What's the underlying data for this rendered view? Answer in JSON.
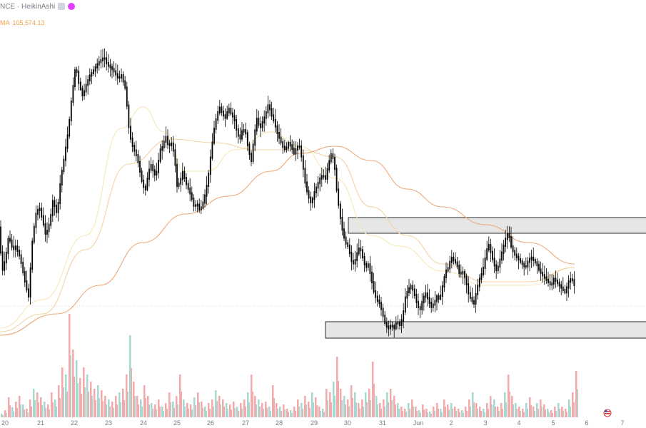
{
  "legend": {
    "symbol_text": "NCE · HeikinAshi",
    "ma_label": "MA",
    "ma_value": "105,574.13"
  },
  "colors": {
    "candle": "#000000",
    "ma_fast": "#f7e6b5",
    "ma_mid": "#f4d2a3",
    "ma_slow": "#eda979",
    "zone_fill": "#e6e6e6",
    "zone_stroke": "#2a2a2a",
    "vol_up": "#a8d8d2",
    "vol_down": "#f4aaaa",
    "crosshair": "#b0b0b0",
    "flag": "#d33"
  },
  "chart_data": {
    "type": "candlestick",
    "chart_style": "HeikinAshi",
    "x_tick_labels": [
      "20",
      "21",
      "22",
      "23",
      "24",
      "25",
      "26",
      "27",
      "28",
      "29",
      "30",
      "31",
      "Jun",
      "2",
      "3",
      "4",
      "5",
      "6",
      "7"
    ],
    "price_path": [
      [
        0,
        340
      ],
      [
        3,
        380
      ],
      [
        8,
        360
      ],
      [
        12,
        330
      ],
      [
        18,
        350
      ],
      [
        22,
        345
      ],
      [
        28,
        360
      ],
      [
        32,
        380
      ],
      [
        36,
        400
      ],
      [
        40,
        415
      ],
      [
        45,
        340
      ],
      [
        50,
        300
      ],
      [
        55,
        290
      ],
      [
        60,
        310
      ],
      [
        64,
        330
      ],
      [
        70,
        310
      ],
      [
        74,
        280
      ],
      [
        80,
        300
      ],
      [
        85,
        250
      ],
      [
        90,
        220
      ],
      [
        96,
        180
      ],
      [
        100,
        140
      ],
      [
        106,
        90
      ],
      [
        110,
        115
      ],
      [
        116,
        135
      ],
      [
        120,
        120
      ],
      [
        126,
        105
      ],
      [
        130,
        100
      ],
      [
        136,
        90
      ],
      [
        140,
        85
      ],
      [
        146,
        80
      ],
      [
        150,
        90
      ],
      [
        156,
        95
      ],
      [
        160,
        100
      ],
      [
        166,
        110
      ],
      [
        170,
        105
      ],
      [
        176,
        125
      ],
      [
        180,
        175
      ],
      [
        184,
        200
      ],
      [
        188,
        210
      ],
      [
        192,
        220
      ],
      [
        196,
        240
      ],
      [
        200,
        260
      ],
      [
        204,
        265
      ],
      [
        208,
        240
      ],
      [
        212,
        230
      ],
      [
        216,
        245
      ],
      [
        220,
        240
      ],
      [
        224,
        210
      ],
      [
        228,
        205
      ],
      [
        232,
        190
      ],
      [
        236,
        205
      ],
      [
        240,
        200
      ],
      [
        244,
        215
      ],
      [
        248,
        260
      ],
      [
        252,
        255
      ],
      [
        256,
        240
      ],
      [
        260,
        255
      ],
      [
        264,
        265
      ],
      [
        268,
        275
      ],
      [
        272,
        290
      ],
      [
        276,
        285
      ],
      [
        280,
        295
      ],
      [
        284,
        285
      ],
      [
        288,
        270
      ],
      [
        292,
        245
      ],
      [
        296,
        210
      ],
      [
        300,
        180
      ],
      [
        304,
        160
      ],
      [
        308,
        150
      ],
      [
        312,
        160
      ],
      [
        316,
        165
      ],
      [
        320,
        150
      ],
      [
        324,
        160
      ],
      [
        328,
        165
      ],
      [
        332,
        185
      ],
      [
        336,
        195
      ],
      [
        340,
        180
      ],
      [
        344,
        185
      ],
      [
        348,
        210
      ],
      [
        352,
        225
      ],
      [
        356,
        190
      ],
      [
        360,
        165
      ],
      [
        364,
        180
      ],
      [
        368,
        170
      ],
      [
        372,
        160
      ],
      [
        376,
        145
      ],
      [
        380,
        160
      ],
      [
        384,
        170
      ],
      [
        388,
        185
      ],
      [
        392,
        195
      ],
      [
        396,
        205
      ],
      [
        400,
        210
      ],
      [
        404,
        200
      ],
      [
        408,
        205
      ],
      [
        412,
        215
      ],
      [
        416,
        205
      ],
      [
        420,
        205
      ],
      [
        424,
        230
      ],
      [
        428,
        260
      ],
      [
        432,
        275
      ],
      [
        436,
        285
      ],
      [
        440,
        270
      ],
      [
        444,
        260
      ],
      [
        448,
        250
      ],
      [
        452,
        245
      ],
      [
        456,
        250
      ],
      [
        460,
        230
      ],
      [
        464,
        215
      ],
      [
        468,
        225
      ],
      [
        472,
        270
      ],
      [
        476,
        300
      ],
      [
        480,
        325
      ],
      [
        484,
        340
      ],
      [
        488,
        345
      ],
      [
        492,
        365
      ],
      [
        496,
        370
      ],
      [
        500,
        355
      ],
      [
        504,
        345
      ],
      [
        508,
        360
      ],
      [
        512,
        375
      ],
      [
        516,
        370
      ],
      [
        520,
        390
      ],
      [
        524,
        410
      ],
      [
        528,
        420
      ],
      [
        532,
        425
      ],
      [
        536,
        440
      ],
      [
        540,
        455
      ],
      [
        544,
        460
      ],
      [
        548,
        455
      ],
      [
        552,
        460
      ],
      [
        556,
        450
      ],
      [
        560,
        455
      ],
      [
        564,
        445
      ],
      [
        568,
        415
      ],
      [
        572,
        405
      ],
      [
        576,
        400
      ],
      [
        580,
        410
      ],
      [
        584,
        425
      ],
      [
        588,
        435
      ],
      [
        592,
        420
      ],
      [
        596,
        410
      ],
      [
        600,
        420
      ],
      [
        604,
        430
      ],
      [
        608,
        425
      ],
      [
        612,
        415
      ],
      [
        616,
        420
      ],
      [
        620,
        400
      ],
      [
        624,
        380
      ],
      [
        628,
        375
      ],
      [
        632,
        360
      ],
      [
        636,
        365
      ],
      [
        640,
        370
      ],
      [
        644,
        385
      ],
      [
        648,
        380
      ],
      [
        652,
        390
      ],
      [
        656,
        410
      ],
      [
        660,
        420
      ],
      [
        664,
        425
      ],
      [
        668,
        405
      ],
      [
        672,
        390
      ],
      [
        676,
        380
      ],
      [
        680,
        360
      ],
      [
        684,
        340
      ],
      [
        688,
        355
      ],
      [
        692,
        370
      ],
      [
        696,
        380
      ],
      [
        700,
        365
      ],
      [
        704,
        350
      ],
      [
        708,
        335
      ],
      [
        712,
        325
      ],
      [
        716,
        345
      ],
      [
        720,
        355
      ],
      [
        724,
        360
      ],
      [
        728,
        365
      ],
      [
        732,
        370
      ],
      [
        736,
        375
      ],
      [
        740,
        365
      ],
      [
        744,
        360
      ],
      [
        748,
        365
      ],
      [
        752,
        370
      ],
      [
        756,
        380
      ],
      [
        760,
        385
      ],
      [
        764,
        390
      ],
      [
        768,
        395
      ],
      [
        772,
        400
      ],
      [
        776,
        390
      ],
      [
        780,
        395
      ],
      [
        784,
        400
      ],
      [
        788,
        405
      ],
      [
        792,
        410
      ],
      [
        796,
        395
      ],
      [
        800,
        390
      ],
      [
        804,
        395
      ],
      [
        806,
        415
      ]
    ],
    "ma_fast_path": [
      [
        0,
        460
      ],
      [
        60,
        420
      ],
      [
        120,
        330
      ],
      [
        170,
        180
      ],
      [
        200,
        150
      ],
      [
        230,
        185
      ],
      [
        260,
        240
      ],
      [
        290,
        240
      ],
      [
        330,
        210
      ],
      [
        380,
        185
      ],
      [
        420,
        205
      ],
      [
        470,
        250
      ],
      [
        520,
        330
      ],
      [
        560,
        345
      ],
      [
        620,
        380
      ],
      [
        680,
        400
      ],
      [
        740,
        400
      ],
      [
        805,
        375
      ]
    ],
    "ma_mid_path": [
      [
        0,
        465
      ],
      [
        60,
        440
      ],
      [
        120,
        350
      ],
      [
        180,
        230
      ],
      [
        240,
        195
      ],
      [
        300,
        200
      ],
      [
        360,
        210
      ],
      [
        420,
        210
      ],
      [
        470,
        220
      ],
      [
        520,
        290
      ],
      [
        570,
        330
      ],
      [
        620,
        370
      ],
      [
        680,
        395
      ],
      [
        740,
        395
      ],
      [
        805,
        375
      ]
    ],
    "ma_slow_path": [
      [
        0,
        470
      ],
      [
        80,
        440
      ],
      [
        140,
        400
      ],
      [
        200,
        340
      ],
      [
        260,
        300
      ],
      [
        320,
        275
      ],
      [
        380,
        240
      ],
      [
        420,
        215
      ],
      [
        470,
        205
      ],
      [
        520,
        225
      ],
      [
        570,
        265
      ],
      [
        620,
        290
      ],
      [
        680,
        315
      ],
      [
        740,
        340
      ],
      [
        805,
        370
      ]
    ],
    "zones": [
      {
        "name": "resistance",
        "price_top": 305,
        "price_bottom": 327,
        "x_start": 488
      },
      {
        "name": "support",
        "price_top": 451,
        "price_bottom": 474,
        "x_start": 456
      }
    ],
    "crosshair_price": 429,
    "volume": [
      {
        "x": 0,
        "h": 5
      },
      {
        "x": 5,
        "h": 10
      },
      {
        "x": 10,
        "h": 28
      },
      {
        "x": 15,
        "h": 14
      },
      {
        "x": 20,
        "h": 22
      },
      {
        "x": 25,
        "h": 30
      },
      {
        "x": 30,
        "h": 18
      },
      {
        "x": 35,
        "h": 12
      },
      {
        "x": 40,
        "h": 25
      },
      {
        "x": 45,
        "h": 40
      },
      {
        "x": 50,
        "h": 35
      },
      {
        "x": 55,
        "h": 28
      },
      {
        "x": 60,
        "h": 22
      },
      {
        "x": 65,
        "h": 18
      },
      {
        "x": 70,
        "h": 35
      },
      {
        "x": 75,
        "h": 25
      },
      {
        "x": 80,
        "h": 45
      },
      {
        "x": 85,
        "h": 70
      },
      {
        "x": 90,
        "h": 60
      },
      {
        "x": 95,
        "h": 145
      },
      {
        "x": 100,
        "h": 95
      },
      {
        "x": 105,
        "h": 80
      },
      {
        "x": 110,
        "h": 55
      },
      {
        "x": 115,
        "h": 70
      },
      {
        "x": 120,
        "h": 60
      },
      {
        "x": 125,
        "h": 50
      },
      {
        "x": 130,
        "h": 40
      },
      {
        "x": 135,
        "h": 45
      },
      {
        "x": 140,
        "h": 38
      },
      {
        "x": 145,
        "h": 30
      },
      {
        "x": 150,
        "h": 25
      },
      {
        "x": 155,
        "h": 22
      },
      {
        "x": 160,
        "h": 30
      },
      {
        "x": 165,
        "h": 35
      },
      {
        "x": 170,
        "h": 40
      },
      {
        "x": 175,
        "h": 60
      },
      {
        "x": 180,
        "h": 115
      },
      {
        "x": 185,
        "h": 50
      },
      {
        "x": 190,
        "h": 30
      },
      {
        "x": 195,
        "h": 25
      },
      {
        "x": 200,
        "h": 45
      },
      {
        "x": 205,
        "h": 30
      },
      {
        "x": 210,
        "h": 20
      },
      {
        "x": 215,
        "h": 18
      },
      {
        "x": 220,
        "h": 25
      },
      {
        "x": 225,
        "h": 15
      },
      {
        "x": 230,
        "h": 20
      },
      {
        "x": 235,
        "h": 35
      },
      {
        "x": 240,
        "h": 22
      },
      {
        "x": 245,
        "h": 30
      },
      {
        "x": 250,
        "h": 60
      },
      {
        "x": 255,
        "h": 25
      },
      {
        "x": 260,
        "h": 20
      },
      {
        "x": 265,
        "h": 18
      },
      {
        "x": 270,
        "h": 28
      },
      {
        "x": 275,
        "h": 35
      },
      {
        "x": 280,
        "h": 22
      },
      {
        "x": 285,
        "h": 15
      },
      {
        "x": 290,
        "h": 20
      },
      {
        "x": 295,
        "h": 25
      },
      {
        "x": 300,
        "h": 38
      },
      {
        "x": 305,
        "h": 30
      },
      {
        "x": 310,
        "h": 25
      },
      {
        "x": 315,
        "h": 20
      },
      {
        "x": 320,
        "h": 18
      },
      {
        "x": 325,
        "h": 22
      },
      {
        "x": 330,
        "h": 15
      },
      {
        "x": 335,
        "h": 20
      },
      {
        "x": 340,
        "h": 25
      },
      {
        "x": 345,
        "h": 35
      },
      {
        "x": 350,
        "h": 60
      },
      {
        "x": 355,
        "h": 30
      },
      {
        "x": 360,
        "h": 25
      },
      {
        "x": 365,
        "h": 20
      },
      {
        "x": 370,
        "h": 22
      },
      {
        "x": 375,
        "h": 15
      },
      {
        "x": 380,
        "h": 45
      },
      {
        "x": 385,
        "h": 20
      },
      {
        "x": 390,
        "h": 15
      },
      {
        "x": 395,
        "h": 18
      },
      {
        "x": 400,
        "h": 12
      },
      {
        "x": 405,
        "h": 10
      },
      {
        "x": 410,
        "h": 15
      },
      {
        "x": 415,
        "h": 25
      },
      {
        "x": 420,
        "h": 20
      },
      {
        "x": 425,
        "h": 30
      },
      {
        "x": 430,
        "h": 22
      },
      {
        "x": 435,
        "h": 35
      },
      {
        "x": 440,
        "h": 28
      },
      {
        "x": 445,
        "h": 15
      },
      {
        "x": 450,
        "h": 12
      },
      {
        "x": 455,
        "h": 40
      },
      {
        "x": 460,
        "h": 35
      },
      {
        "x": 465,
        "h": 50
      },
      {
        "x": 470,
        "h": 85
      },
      {
        "x": 475,
        "h": 40
      },
      {
        "x": 480,
        "h": 30
      },
      {
        "x": 485,
        "h": 25
      },
      {
        "x": 490,
        "h": 45
      },
      {
        "x": 495,
        "h": 35
      },
      {
        "x": 500,
        "h": 20
      },
      {
        "x": 505,
        "h": 25
      },
      {
        "x": 510,
        "h": 35
      },
      {
        "x": 515,
        "h": 40
      },
      {
        "x": 520,
        "h": 78
      },
      {
        "x": 525,
        "h": 30
      },
      {
        "x": 530,
        "h": 20
      },
      {
        "x": 535,
        "h": 25
      },
      {
        "x": 540,
        "h": 35
      },
      {
        "x": 545,
        "h": 40
      },
      {
        "x": 550,
        "h": 30
      },
      {
        "x": 555,
        "h": 20
      },
      {
        "x": 560,
        "h": 15
      },
      {
        "x": 565,
        "h": 12
      },
      {
        "x": 570,
        "h": 20
      },
      {
        "x": 575,
        "h": 25
      },
      {
        "x": 580,
        "h": 15
      },
      {
        "x": 585,
        "h": 10
      },
      {
        "x": 590,
        "h": 18
      },
      {
        "x": 595,
        "h": 12
      },
      {
        "x": 600,
        "h": 8
      },
      {
        "x": 605,
        "h": 15
      },
      {
        "x": 610,
        "h": 20
      },
      {
        "x": 615,
        "h": 12
      },
      {
        "x": 620,
        "h": 25
      },
      {
        "x": 625,
        "h": 18
      },
      {
        "x": 630,
        "h": 20
      },
      {
        "x": 635,
        "h": 15
      },
      {
        "x": 640,
        "h": 12
      },
      {
        "x": 645,
        "h": 10
      },
      {
        "x": 650,
        "h": 15
      },
      {
        "x": 655,
        "h": 25
      },
      {
        "x": 660,
        "h": 35
      },
      {
        "x": 665,
        "h": 20
      },
      {
        "x": 670,
        "h": 15
      },
      {
        "x": 675,
        "h": 12
      },
      {
        "x": 680,
        "h": 20
      },
      {
        "x": 685,
        "h": 30
      },
      {
        "x": 690,
        "h": 25
      },
      {
        "x": 695,
        "h": 15
      },
      {
        "x": 700,
        "h": 20
      },
      {
        "x": 705,
        "h": 35
      },
      {
        "x": 710,
        "h": 60
      },
      {
        "x": 715,
        "h": 30
      },
      {
        "x": 720,
        "h": 20
      },
      {
        "x": 725,
        "h": 15
      },
      {
        "x": 730,
        "h": 12
      },
      {
        "x": 735,
        "h": 20
      },
      {
        "x": 740,
        "h": 28
      },
      {
        "x": 745,
        "h": 15
      },
      {
        "x": 750,
        "h": 20
      },
      {
        "x": 755,
        "h": 25
      },
      {
        "x": 760,
        "h": 18
      },
      {
        "x": 765,
        "h": 12
      },
      {
        "x": 770,
        "h": 10
      },
      {
        "x": 775,
        "h": 15
      },
      {
        "x": 780,
        "h": 20
      },
      {
        "x": 785,
        "h": 15
      },
      {
        "x": 790,
        "h": 12
      },
      {
        "x": 795,
        "h": 25
      },
      {
        "x": 800,
        "h": 35
      },
      {
        "x": 805,
        "h": 65
      }
    ]
  }
}
